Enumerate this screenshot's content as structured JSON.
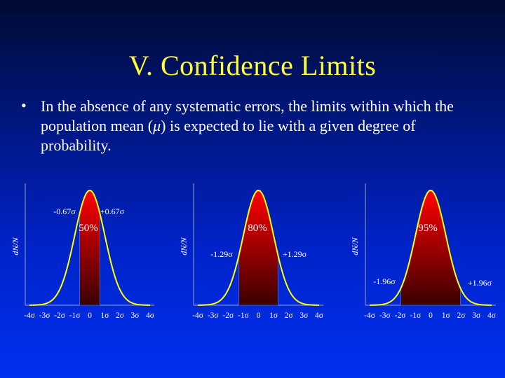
{
  "title": "V. Confidence Limits",
  "bullet": {
    "marker": "•",
    "text_before": "In the absence of any systematic errors, the limits within which the population mean (",
    "mu": "μ",
    "text_after": ") is expected to lie with a given degree of probability."
  },
  "colors": {
    "title": "#ffff33",
    "curve": "#ffff00",
    "fill_top": "#ff0000",
    "fill_bottom": "#3a0000",
    "text": "#ffffff"
  },
  "panels": [
    {
      "ylabel": "dN/N",
      "percent": "50%",
      "left_label": "-0.67σ",
      "right_label": "+0.67σ",
      "z": 0.67,
      "ticks": [
        "-4σ",
        "-3σ",
        "-2σ",
        "-1σ",
        "0",
        "1σ",
        "2σ",
        "3σ",
        "4σ"
      ]
    },
    {
      "ylabel": "dN/N",
      "percent": "80%",
      "left_label": "-1.29σ",
      "right_label": "+1.29σ",
      "z": 1.29,
      "ticks": [
        "-4σ",
        "-3σ",
        "-2σ",
        "-1σ",
        "0",
        "1σ",
        "2σ",
        "3σ",
        "4σ"
      ]
    },
    {
      "ylabel": "dN/N",
      "percent": "95%",
      "left_label": "-1.96σ",
      "right_label": "+1.96σ",
      "z": 1.96,
      "ticks": [
        "-4σ",
        "-3σ",
        "-2σ",
        "-1σ",
        "0",
        "1σ",
        "2σ",
        "3σ",
        "4σ"
      ]
    }
  ]
}
